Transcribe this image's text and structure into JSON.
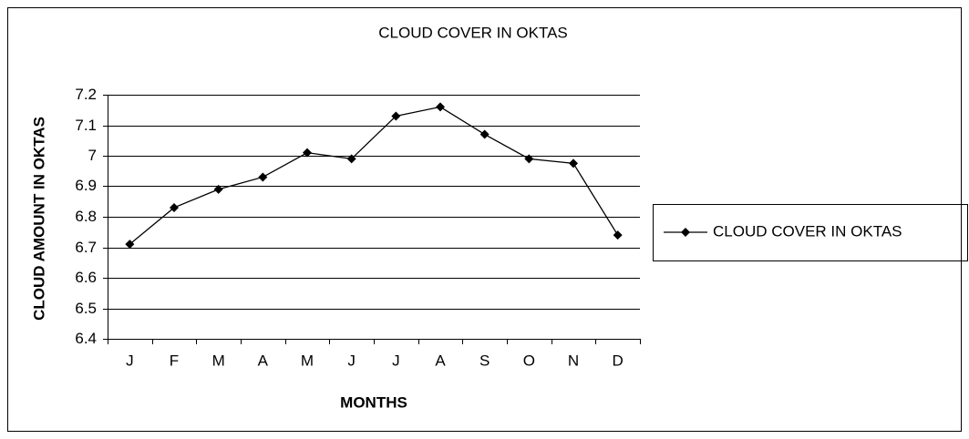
{
  "chart_data": {
    "type": "line",
    "title": "CLOUD COVER IN OKTAS",
    "x_label": "MONTHS",
    "y_label": "CLOUD AMOUNT IN OKTAS",
    "categories": [
      "J",
      "F",
      "M",
      "A",
      "M",
      "J",
      "J",
      "A",
      "S",
      "O",
      "N",
      "D"
    ],
    "series": [
      {
        "name": "CLOUD COVER IN OKTAS",
        "color": "#000000",
        "values": [
          6.71,
          6.83,
          6.89,
          6.93,
          7.01,
          6.99,
          7.13,
          7.16,
          7.07,
          6.99,
          6.975,
          6.74
        ]
      }
    ],
    "ylim": [
      6.4,
      7.2
    ],
    "yticks": [
      6.4,
      6.5,
      6.6,
      6.7,
      6.8,
      6.9,
      7,
      7.1,
      7.2
    ],
    "grid": true,
    "legend": "right"
  }
}
